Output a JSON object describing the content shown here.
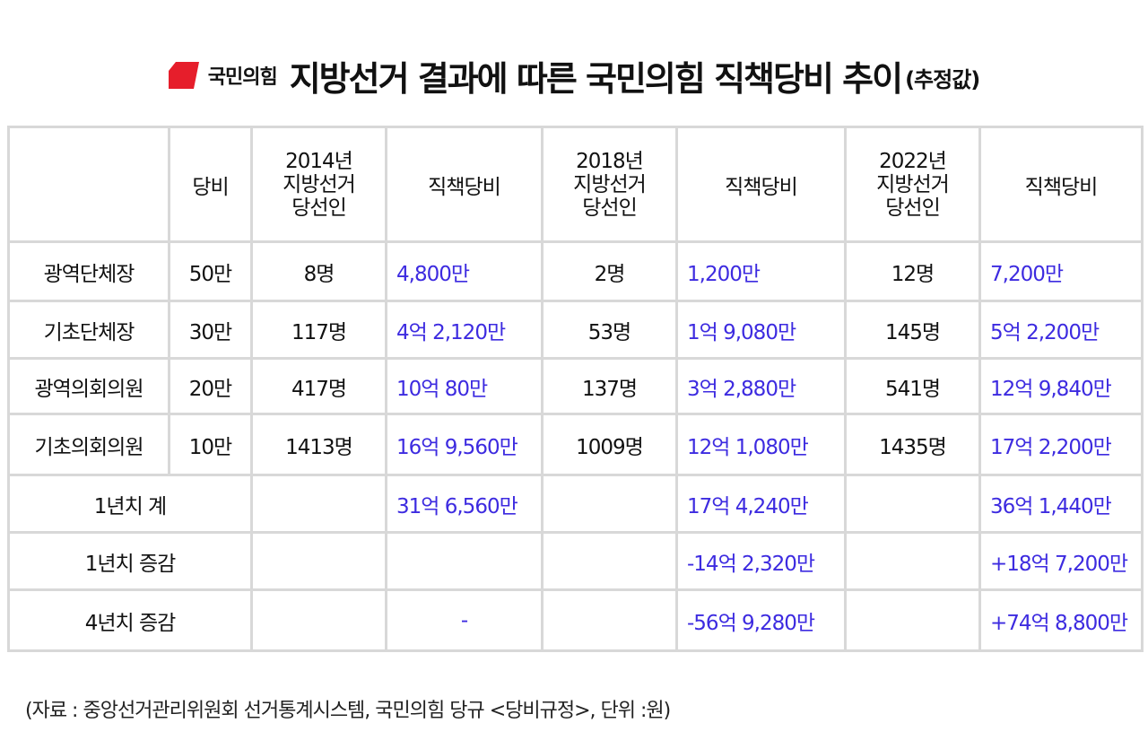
{
  "header": {
    "party": "국민의힘",
    "title": "지방선거 결과에 따른 국민의힘 직책당비 추이",
    "subtitle": "(추정값)",
    "logo_color": "#e61e2b"
  },
  "table": {
    "headers": {
      "fee": "당비",
      "y2014": [
        "2014년",
        "지방선거",
        "당선인"
      ],
      "y2018": [
        "2018년",
        "지방선거",
        "당선인"
      ],
      "y2022": [
        "2022년",
        "지방선거",
        "당선인"
      ],
      "duty": "직책당비"
    },
    "rows": [
      {
        "label": "광역단체장",
        "fee": "50만",
        "c2014": "8명",
        "d2014": "4,800만",
        "c2018": "2명",
        "d2018": "1,200만",
        "c2022": "12명",
        "d2022": "7,200만"
      },
      {
        "label": "기초단체장",
        "fee": "30만",
        "c2014": "117명",
        "d2014": "4억 2,120만",
        "c2018": "53명",
        "d2018": "1억 9,080만",
        "c2022": "145명",
        "d2022": "5억 2,200만"
      },
      {
        "label": "광역의회의원",
        "fee": "20만",
        "c2014": "417명",
        "d2014": "10억 80만",
        "c2018": "137명",
        "d2018": "3억 2,880만",
        "c2022": "541명",
        "d2022": "12억 9,840만"
      },
      {
        "label": "기초의회의원",
        "fee": "10만",
        "c2014": "1413명",
        "d2014": "16억 9,560만",
        "c2018": "1009명",
        "d2018": "12억 1,080만",
        "c2022": "1435명",
        "d2022": "17억 2,200만"
      }
    ],
    "summary": [
      {
        "label": "1년치 계",
        "d2014": "31억 6,560만",
        "d2018": "17억 4,240만",
        "d2022": "36억 1,440만"
      },
      {
        "label": "1년치 증감",
        "d2014": "",
        "d2018": "-14억 2,320만",
        "d2022": "+18억 7,200만"
      },
      {
        "label": "4년치 증감",
        "d2014": "-",
        "d2018": "-56억 9,280만",
        "d2022": "+74억 8,800만"
      }
    ],
    "value_color": "#3d2be0",
    "border_color": "#d8d8d8"
  },
  "footer": "(자료 : 중앙선거관리위원회 선거통계시스템, 국민의힘 당규 <당비규정>, 단위 :원)"
}
